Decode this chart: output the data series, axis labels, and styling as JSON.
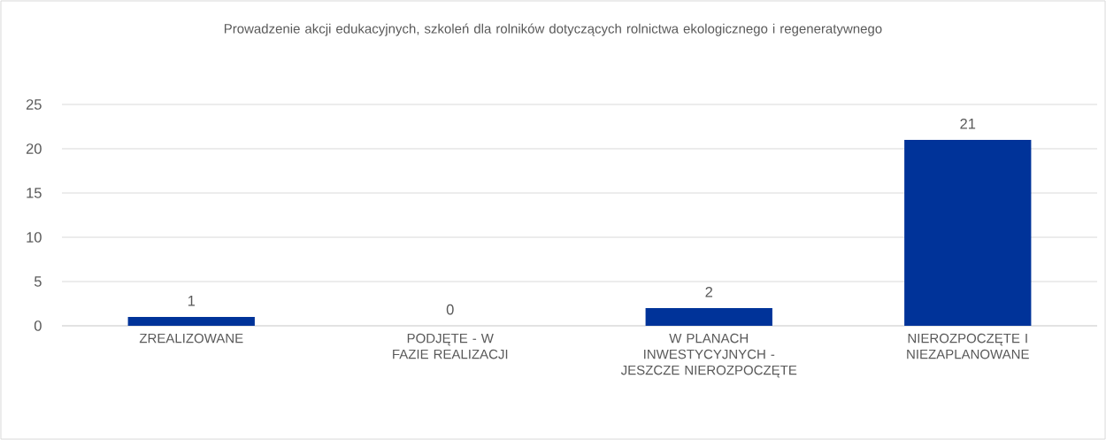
{
  "chart_data": {
    "type": "bar",
    "title": "Prowadzenie akcji edukacyjnych, szkoleń dla rolników dotyczących rolnictwa ekologicznego i regeneratywnego",
    "categories": [
      "ZREALIZOWANE",
      "PODJĘTE - W FAZIE REALIZACJI",
      "W PLANACH INWESTYCYJNYCH - JESZCZE NIEROZPOCZĘTE",
      "NIEROZPOCZĘTE I NIEZAPLANOWANE"
    ],
    "values": [
      1,
      0,
      2,
      21
    ],
    "color": "#003399",
    "data_labels": true,
    "ylim": [
      0,
      25
    ],
    "yticks": [
      0,
      5,
      10,
      15,
      20,
      25
    ],
    "grid": "y"
  }
}
